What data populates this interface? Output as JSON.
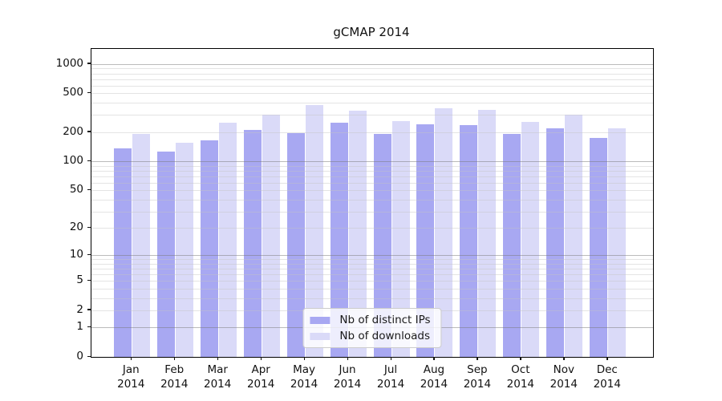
{
  "chart_data": {
    "type": "bar",
    "title": "gCMAP 2014",
    "categories": [
      "Jan",
      "Feb",
      "Mar",
      "Apr",
      "May",
      "Jun",
      "Jul",
      "Aug",
      "Sep",
      "Oct",
      "Nov",
      "Dec"
    ],
    "x_year_label": "2014",
    "series": [
      {
        "name": "Nb of distinct IPs",
        "color": "#a8a8f2",
        "values": [
          135,
          125,
          165,
          210,
          195,
          250,
          190,
          240,
          235,
          190,
          220,
          175
        ]
      },
      {
        "name": "Nb of downloads",
        "color": "#dadaf8",
        "values": [
          190,
          155,
          250,
          300,
          380,
          335,
          260,
          350,
          340,
          255,
          300,
          220
        ]
      }
    ],
    "yscale": "log1p",
    "yticks": [
      0,
      1,
      2,
      5,
      10,
      20,
      50,
      100,
      200,
      500,
      1000
    ],
    "major_gridlines": [
      1,
      10,
      100,
      1000
    ],
    "ylim": [
      0,
      1430
    ],
    "xlabel": "",
    "ylabel": "",
    "grid": true,
    "legend_position": "lower center"
  },
  "colors": {
    "major_grid": "rgba(120,120,120,0.50)",
    "minor_grid": "rgba(195,195,195,0.45)",
    "spine": "#000000",
    "text": "#111111"
  }
}
